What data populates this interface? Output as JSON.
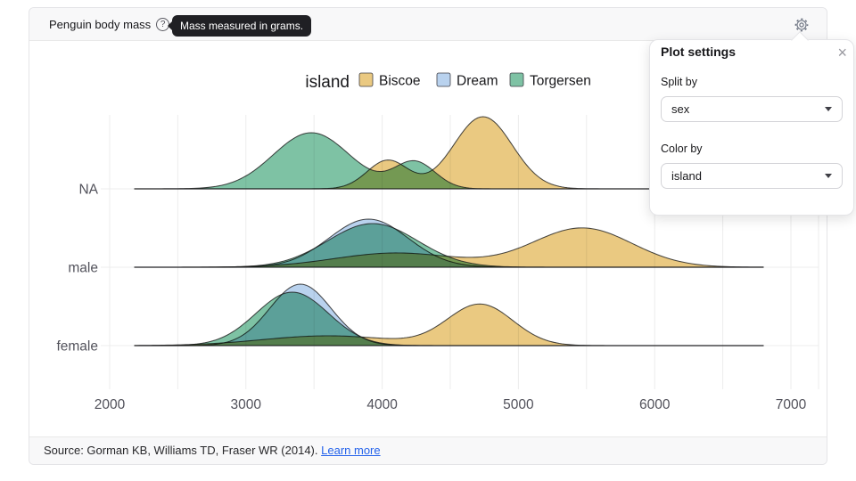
{
  "header": {
    "title": "Penguin body mass",
    "help_tooltip": "Mass measured in grams."
  },
  "legend": {
    "title": "island",
    "items": [
      {
        "label": "Biscoe",
        "color": "#eac981"
      },
      {
        "label": "Dream",
        "color": "#b9d2ee"
      },
      {
        "label": "Torgersen",
        "color": "#7ec2a4"
      }
    ]
  },
  "settings_panel": {
    "title": "Plot settings",
    "close_label": "×",
    "fields": [
      {
        "label": "Split by",
        "value": "sex"
      },
      {
        "label": "Color by",
        "value": "island"
      }
    ]
  },
  "footer": {
    "source": "Source: Gorman KB, Williams TD, Fraser WR (2014).",
    "link": "Learn more"
  },
  "chart_data": {
    "type": "area",
    "subtype": "ridgeline-density",
    "title": "Penguin body mass",
    "xlabel": "",
    "ylabel": "",
    "x_domain": [
      2000,
      7000
    ],
    "x_ticks": [
      2000,
      3000,
      4000,
      5000,
      6000,
      7000
    ],
    "grid_step": 500,
    "grid": true,
    "legend_position": "top",
    "curve_extent": [
      2180,
      6800
    ],
    "rows": [
      {
        "label": "NA",
        "series": [
          {
            "name": "Biscoe",
            "components": [
              {
                "mean": 4040,
                "sd": 150,
                "peak": 32
              },
              {
                "mean": 4740,
                "sd": 215,
                "peak": 81
              }
            ]
          },
          {
            "name": "Torgersen",
            "components": [
              {
                "mean": 3480,
                "sd": 280,
                "peak": 63
              },
              {
                "mean": 4240,
                "sd": 150,
                "peak": 30
              }
            ]
          }
        ]
      },
      {
        "label": "male",
        "series": [
          {
            "name": "Dream",
            "components": [
              {
                "mean": 3900,
                "sd": 290,
                "peak": 54
              }
            ]
          },
          {
            "name": "Biscoe",
            "components": [
              {
                "mean": 4100,
                "sd": 450,
                "peak": 16
              },
              {
                "mean": 5470,
                "sd": 365,
                "peak": 44
              }
            ]
          },
          {
            "name": "Torgersen",
            "components": [
              {
                "mean": 3930,
                "sd": 330,
                "peak": 49
              }
            ]
          }
        ]
      },
      {
        "label": "female",
        "series": [
          {
            "name": "Dream",
            "components": [
              {
                "mean": 3400,
                "sd": 225,
                "peak": 69
              }
            ]
          },
          {
            "name": "Biscoe",
            "components": [
              {
                "mean": 3600,
                "sd": 480,
                "peak": 11
              },
              {
                "mean": 4720,
                "sd": 240,
                "peak": 46
              }
            ]
          },
          {
            "name": "Torgersen",
            "components": [
              {
                "mean": 3340,
                "sd": 265,
                "peak": 60
              }
            ]
          }
        ]
      }
    ]
  }
}
